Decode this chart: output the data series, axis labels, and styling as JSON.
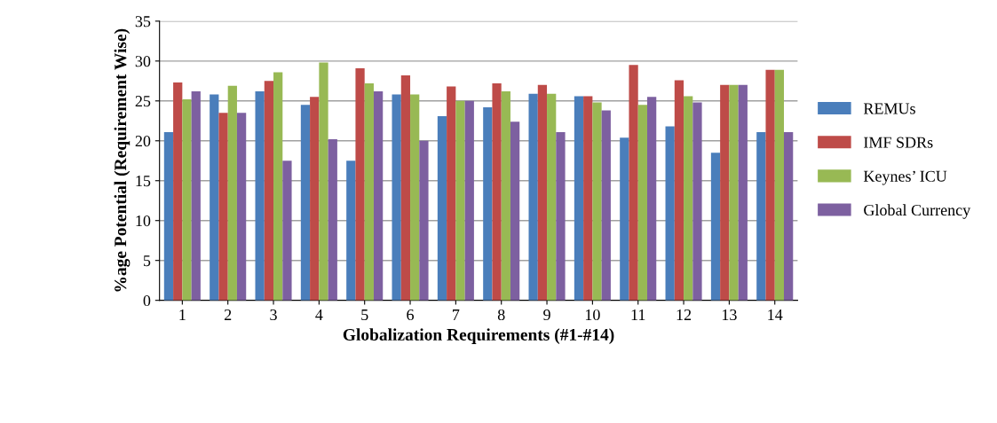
{
  "chart_data": {
    "type": "bar",
    "xlabel": "Globalization Requirements (#1-#14)",
    "ylabel": "%age Potential (Requirement Wise)",
    "categories": [
      "1",
      "2",
      "3",
      "4",
      "5",
      "6",
      "7",
      "8",
      "9",
      "10",
      "11",
      "12",
      "13",
      "14"
    ],
    "series": [
      {
        "name": "REMUs",
        "color": "#4a7ebb",
        "values": [
          21.1,
          25.8,
          26.2,
          24.5,
          17.5,
          25.8,
          23.1,
          24.2,
          25.9,
          25.6,
          20.4,
          21.8,
          18.5,
          21.1
        ]
      },
      {
        "name": "IMF SDRs",
        "color": "#be4b48",
        "values": [
          27.3,
          23.5,
          27.5,
          25.5,
          29.1,
          28.2,
          26.8,
          27.2,
          27.0,
          25.6,
          29.5,
          27.6,
          27.0,
          28.9
        ]
      },
      {
        "name": "Keynes’ ICU",
        "color": "#98b954",
        "values": [
          25.2,
          26.9,
          28.6,
          29.8,
          27.2,
          25.8,
          25.0,
          26.2,
          25.9,
          24.8,
          24.5,
          25.6,
          27.0,
          28.9
        ]
      },
      {
        "name": "Global Currency",
        "color": "#7d60a0",
        "values": [
          26.2,
          23.5,
          17.5,
          20.2,
          26.2,
          20.0,
          25.0,
          22.4,
          21.1,
          23.8,
          25.5,
          24.8,
          27.0,
          21.1
        ]
      }
    ],
    "ylim": [
      0,
      35
    ],
    "yticks": [
      0,
      5,
      10,
      15,
      20,
      25,
      30,
      35
    ],
    "grid": "y",
    "legend": "right"
  }
}
